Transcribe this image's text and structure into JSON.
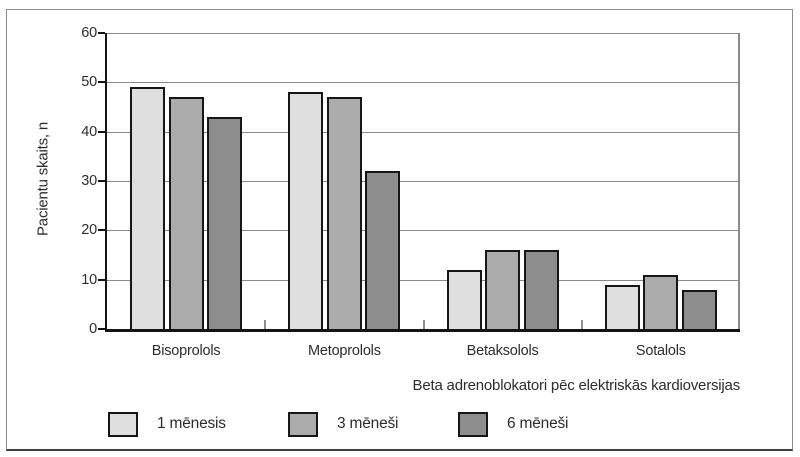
{
  "chart_data": {
    "type": "bar",
    "categories": [
      "Bisoprolols",
      "Metoprolols",
      "Betaksolols",
      "Sotalols"
    ],
    "series": [
      {
        "name": "1 mēnesis",
        "color": "#dfdfdf",
        "values": [
          49,
          48,
          12,
          9
        ]
      },
      {
        "name": "3 mēneši",
        "color": "#ababab",
        "values": [
          47,
          47,
          16,
          11
        ]
      },
      {
        "name": "6 mēneši",
        "color": "#8d8d8d",
        "values": [
          43,
          32,
          16,
          8
        ]
      }
    ],
    "xlabel": "Beta adrenoblokatori pēc elektriskās kardioversijas",
    "ylabel": "Pacientu skaits, n",
    "ylim": [
      0,
      60
    ],
    "yticks": [
      0,
      10,
      20,
      30,
      40,
      50,
      60
    ],
    "grid": true,
    "legend_position": "bottom",
    "axis_color": "#141414",
    "gridline_color": "#8a8a8a",
    "bar_border_color": "#161616"
  }
}
